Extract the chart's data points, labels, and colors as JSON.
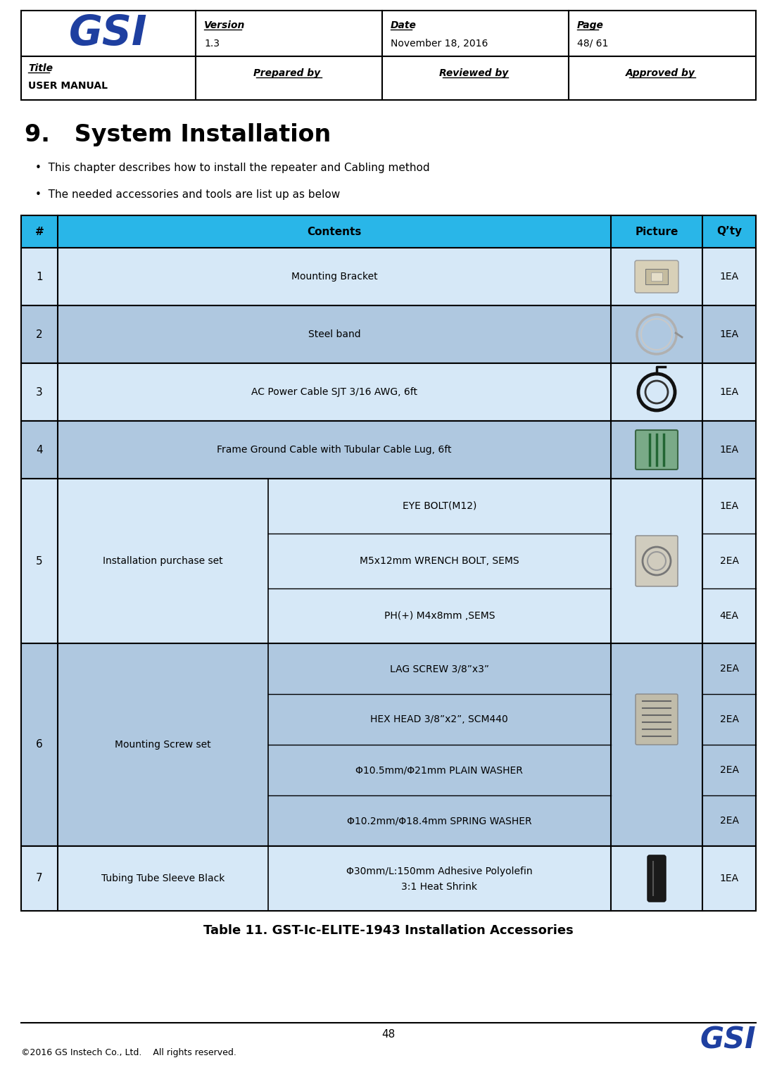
{
  "header": {
    "version_label": "Version",
    "version_value": "1.3",
    "date_label": "Date",
    "date_value": "November 18, 2016",
    "page_label": "Page",
    "page_value": "48/ 61",
    "title_label": "Title",
    "title_value": "USER MANUAL",
    "prepared_by": "Prepared by ",
    "reviewed_by": "Reviewed by ",
    "approved_by": "Approved by "
  },
  "section_title": "9.   System Installation",
  "bullets": [
    "This chapter describes how to install the repeater and Cabling method",
    "The needed accessories and tools are list up as below"
  ],
  "header_bg": "#29B6E8",
  "row_bg_light": "#D6E8F7",
  "row_bg_dark": "#AFC8E0",
  "white": "#FFFFFF",
  "gsi_color": "#1E3FA0",
  "rows": [
    {
      "num": "1",
      "content": "Mounting Bracket",
      "qty": "1EA",
      "sub": [],
      "pic": "bracket"
    },
    {
      "num": "2",
      "content": "Steel band",
      "qty": "1EA",
      "sub": [],
      "pic": "steel_band"
    },
    {
      "num": "3",
      "content": "AC Power Cable SJT 3/16 AWG, 6ft",
      "qty": "1EA",
      "sub": [],
      "pic": "power_cable"
    },
    {
      "num": "4",
      "content": "Frame Ground Cable with Tubular Cable Lug, 6ft",
      "qty": "1EA",
      "sub": [],
      "pic": "ground_cable"
    },
    {
      "num": "5",
      "content": "Installation purchase set",
      "qty": "",
      "sub": [
        {
          "text": "EYE BOLT(M12)",
          "qty": "1EA"
        },
        {
          "text": "M5x12mm WRENCH BOLT, SEMS",
          "qty": "2EA"
        },
        {
          "text": "PH(+) M4x8mm ,SEMS",
          "qty": "4EA"
        }
      ],
      "pic": "purchase_set"
    },
    {
      "num": "6",
      "content": "Mounting Screw set",
      "qty": "",
      "sub": [
        {
          "text": "LAG SCREW 3/8”x3”",
          "qty": "2EA"
        },
        {
          "text": "HEX HEAD 3/8”x2”, SCM440",
          "qty": "2EA"
        },
        {
          "text": "Φ10.5mm/Φ21mm PLAIN WASHER",
          "qty": "2EA"
        },
        {
          "text": "Φ10.2mm/Φ18.4mm SPRING WASHER",
          "qty": "2EA"
        }
      ],
      "pic": "screw_set"
    },
    {
      "num": "7",
      "content": "Tubing Tube Sleeve Black",
      "qty": "1EA",
      "sub": [
        {
          "text": "Φ30mm/L:150mm Adhesive Polyolefin\n3:1 Heat Shrink",
          "qty": ""
        }
      ],
      "pic": "tubing"
    }
  ],
  "table_caption": "Table 11. GST-Ic-ELITE-1943 Installation Accessories",
  "footer_page": "48",
  "footer_copyright": "©2016 GS Instech Co., Ltd.    All rights reserved."
}
